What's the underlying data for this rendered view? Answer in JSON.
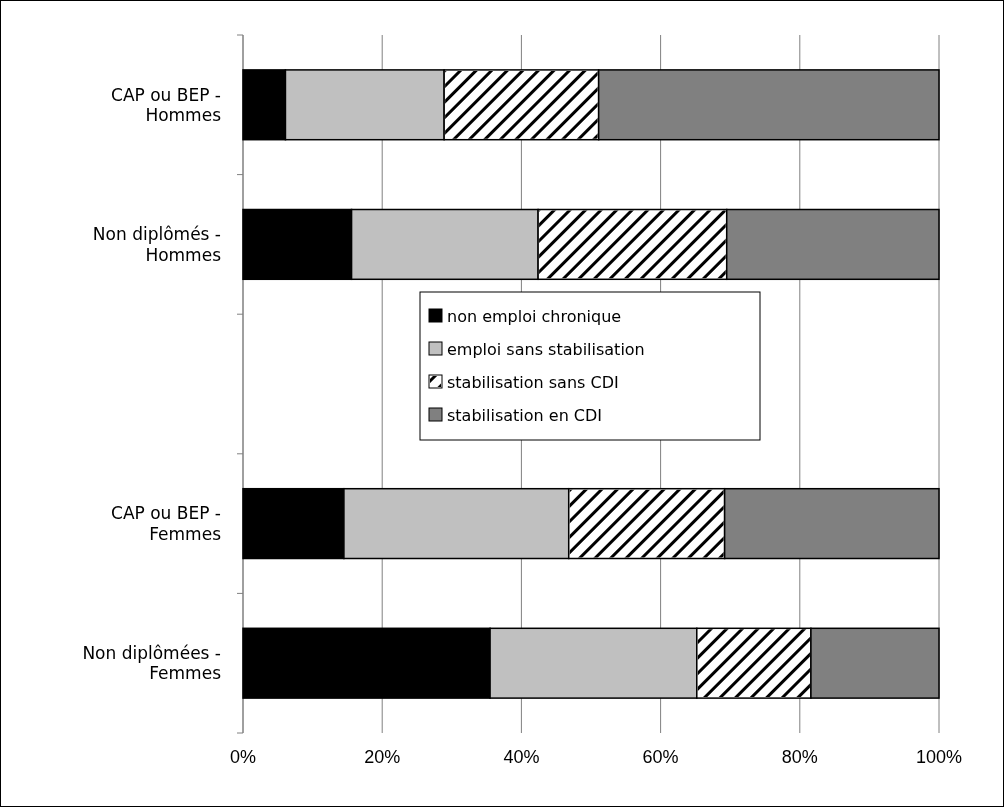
{
  "chart_data": {
    "type": "bar",
    "orientation": "horizontal",
    "stacked": true,
    "categories": [
      "CAP ou BEP - Hommes",
      "Non diplômés - Hommes",
      null,
      "CAP ou BEP - Femmes",
      "Non diplômées - Femmes"
    ],
    "series": [
      {
        "name": "non emploi chronique",
        "color": "#000000",
        "values": [
          6.1,
          15.6,
          null,
          14.5,
          35.5
        ]
      },
      {
        "name": "emploi sans stabilisation",
        "color": "#c0c0c0",
        "values": [
          22.8,
          26.8,
          null,
          32.3,
          29.7
        ]
      },
      {
        "name": "stabilisation sans CDI",
        "color": "#ffffff",
        "values": [
          22.2,
          27.1,
          null,
          22.4,
          16.4
        ]
      },
      {
        "name": "stabilisation en CDI",
        "color": "#808080",
        "values": [
          48.9,
          30.5,
          null,
          30.8,
          18.4
        ]
      }
    ],
    "xlim": [
      0,
      100
    ],
    "xticks": [
      {
        "value": 0,
        "label": "0%"
      },
      {
        "value": 20,
        "label": "20%"
      },
      {
        "value": 40,
        "label": "40%"
      },
      {
        "value": 60,
        "label": "60%"
      },
      {
        "value": 80,
        "label": "80%"
      },
      {
        "value": 100,
        "label": "100%"
      }
    ],
    "grid": "x",
    "legend": "center"
  }
}
